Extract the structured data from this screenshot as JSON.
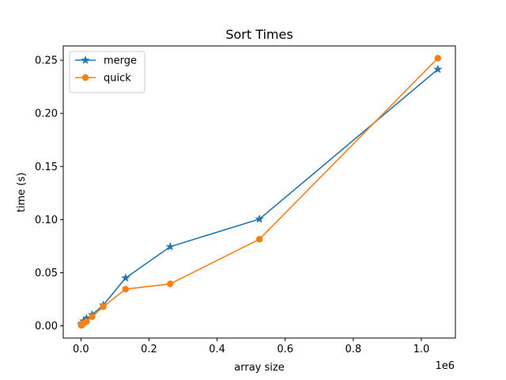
{
  "chart_data": {
    "type": "line",
    "title": "Sort Times",
    "xlabel": "array size",
    "ylabel": "time (s)",
    "x_offset_text": "1e6",
    "x_scale": 1000000,
    "xlim": [
      -0.052,
      1.1
    ],
    "ylim": [
      -0.0115,
      0.2635
    ],
    "xticks": [
      0.0,
      0.2,
      0.4,
      0.6,
      0.8,
      1.0
    ],
    "xtick_labels": [
      "0.0",
      "0.2",
      "0.4",
      "0.6",
      "0.8",
      "1.0"
    ],
    "yticks": [
      0.0,
      0.05,
      0.1,
      0.15,
      0.2,
      0.25
    ],
    "ytick_labels": [
      "0.00",
      "0.05",
      "0.10",
      "0.15",
      "0.20",
      "0.25"
    ],
    "grid": false,
    "legend_position": "top-left",
    "series": [
      {
        "name": "merge",
        "color": "#1f77b4",
        "marker": "star",
        "x": [
          1024,
          2048,
          4096,
          8192,
          16384,
          32768,
          65536,
          131072,
          262144,
          524288,
          1048576
        ],
        "y": [
          0.0012,
          0.0015,
          0.0025,
          0.0045,
          0.007,
          0.0105,
          0.0195,
          0.045,
          0.0745,
          0.1005,
          0.2415
        ]
      },
      {
        "name": "quick",
        "color": "#ff7f0e",
        "marker": "circle",
        "x": [
          1024,
          2048,
          4096,
          8192,
          16384,
          32768,
          65536,
          131072,
          262144,
          524288,
          1048576
        ],
        "y": [
          0.0005,
          0.001,
          0.0015,
          0.0025,
          0.004,
          0.0085,
          0.018,
          0.0345,
          0.0395,
          0.0815,
          0.252
        ]
      }
    ]
  }
}
